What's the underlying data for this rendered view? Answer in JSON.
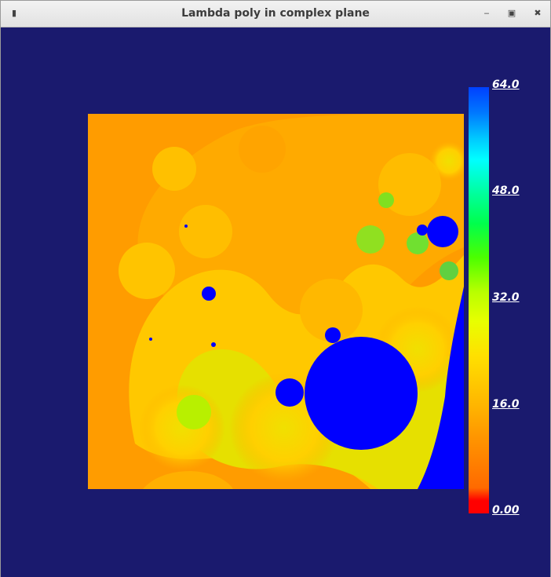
{
  "window": {
    "title": "Lambda poly in complex plane",
    "menu_glyph": "▮",
    "minimize_glyph": "‒",
    "maximize_glyph": "▣",
    "close_glyph": "✖"
  },
  "colorbar": {
    "ticks": [
      "64.0",
      "48.0",
      "32.0",
      "16.0",
      "0.00"
    ]
  },
  "colors": {
    "background": "#1a1a6e",
    "interior": "#0000ff",
    "exterior": "#ff9c00"
  }
}
